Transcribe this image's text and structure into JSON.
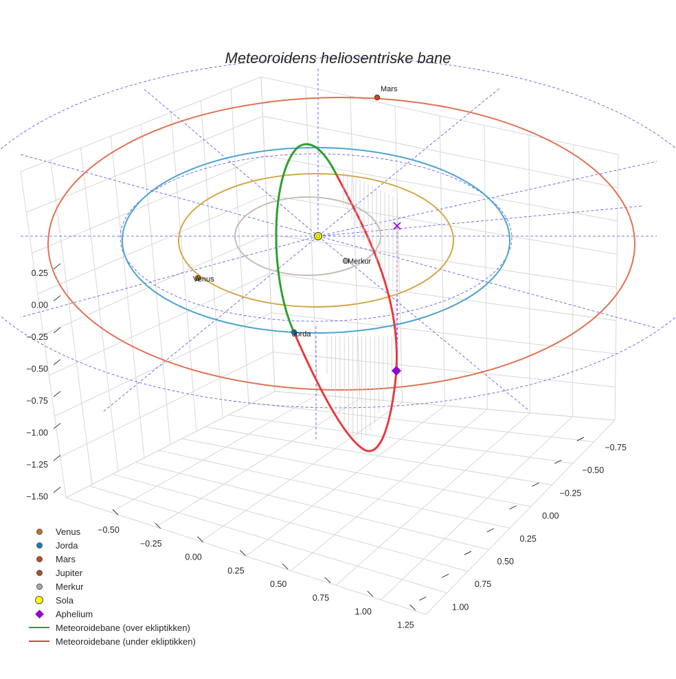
{
  "chart_data": {
    "type": "line",
    "title": "Meteoroidens heliosentriske bane",
    "z_ticks": [
      "0.25",
      "0.00",
      "−0.25",
      "−0.50",
      "−0.75",
      "−1.00",
      "−1.25",
      "−1.50"
    ],
    "x_ticks": [
      "−0.50",
      "−0.25",
      "0.00",
      "0.25",
      "0.50",
      "0.75",
      "1.00",
      "1.25"
    ],
    "y_ticks": [
      "−0.75",
      "−0.50",
      "−0.25",
      "0.00",
      "0.25",
      "0.50",
      "0.75",
      "1.00"
    ],
    "grid": true,
    "legend_position": "bottom-left",
    "planets": [
      {
        "name": "Venus",
        "label": "Venus",
        "color": "#c2741f",
        "orbit_color": "#d4a646",
        "orbit_radius": 0.723
      },
      {
        "name": "Jorda",
        "label": "Jorda",
        "color": "#1f77b4",
        "orbit_color": "#4da3cf",
        "orbit_radius": 1.0
      },
      {
        "name": "Mars",
        "label": "Mars",
        "color": "#d1431b",
        "orbit_color": "#e07050",
        "orbit_radius": 1.524
      },
      {
        "name": "Jupiter",
        "label": "",
        "color": "#a0522d"
      },
      {
        "name": "Merkur",
        "label": "Merkur",
        "color": "#b0a6a0",
        "orbit_color": "#c8bcb8",
        "orbit_radius": 0.387
      }
    ],
    "sun": {
      "name": "Sola",
      "color": "#ffff00"
    },
    "aphelion": {
      "name": "Aphelium",
      "color": "#9400d3"
    },
    "series": [
      {
        "name": "Meteoroidebane (over ekliptikken)",
        "color": "#2ca02c"
      },
      {
        "name": "Meteoroidebane (under ekliptikken)",
        "color": "#e8383d"
      }
    ],
    "guide_color": "#4a4ae0"
  },
  "legend": [
    {
      "label": "Venus",
      "kind": "dot",
      "color": "#c2741f"
    },
    {
      "label": "Jorda",
      "kind": "dot",
      "color": "#1f77b4"
    },
    {
      "label": "Mars",
      "kind": "dot",
      "color": "#d1431b"
    },
    {
      "label": "Jupiter",
      "kind": "dot",
      "color": "#a0522d"
    },
    {
      "label": "Merkur",
      "kind": "dot",
      "color": "#b0a6a0"
    },
    {
      "label": "Sola",
      "kind": "sun",
      "color": "#ffff00"
    },
    {
      "label": "Aphelium",
      "kind": "diamond",
      "color": "#9400d3"
    },
    {
      "label": "Meteoroidebane (over ekliptikken)",
      "kind": "line",
      "color": "#2ca02c"
    },
    {
      "label": "Meteoroidebane (under ekliptikken)",
      "kind": "line",
      "color": "#e8383d"
    }
  ]
}
